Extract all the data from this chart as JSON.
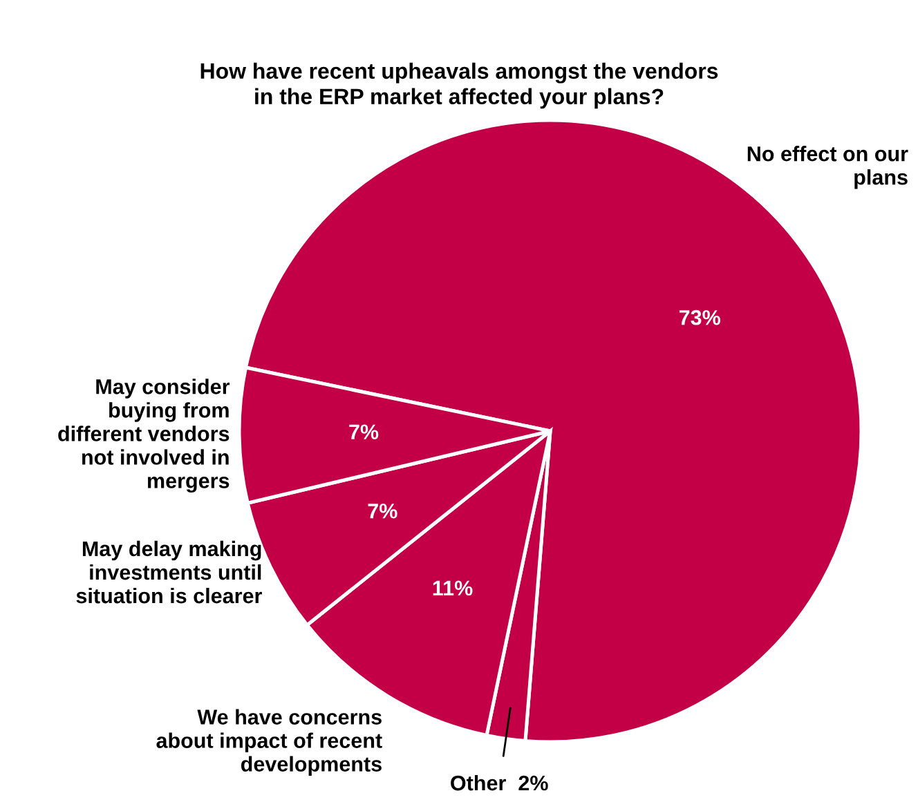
{
  "chart_data": {
    "type": "pie",
    "title": "How have recent upheavals amongst the vendors\nin the ERP market affected your plans?",
    "categories": [
      "No effect on our\nplans",
      "Other",
      "We have concerns\nabout impact of recent\ndevelopments",
      "May delay making\ninvestments until\nsituation is clearer",
      "May consider\nbuying from\ndifferent vendors\nnot involved in\nmergers"
    ],
    "values": [
      73,
      2,
      11,
      7,
      7
    ],
    "value_labels": [
      "73%",
      "2%",
      "11%",
      "7%",
      "7%"
    ],
    "colors": [
      "#c30045",
      "#c30045",
      "#c30045",
      "#c30045",
      "#c30045"
    ],
    "legend": false
  }
}
